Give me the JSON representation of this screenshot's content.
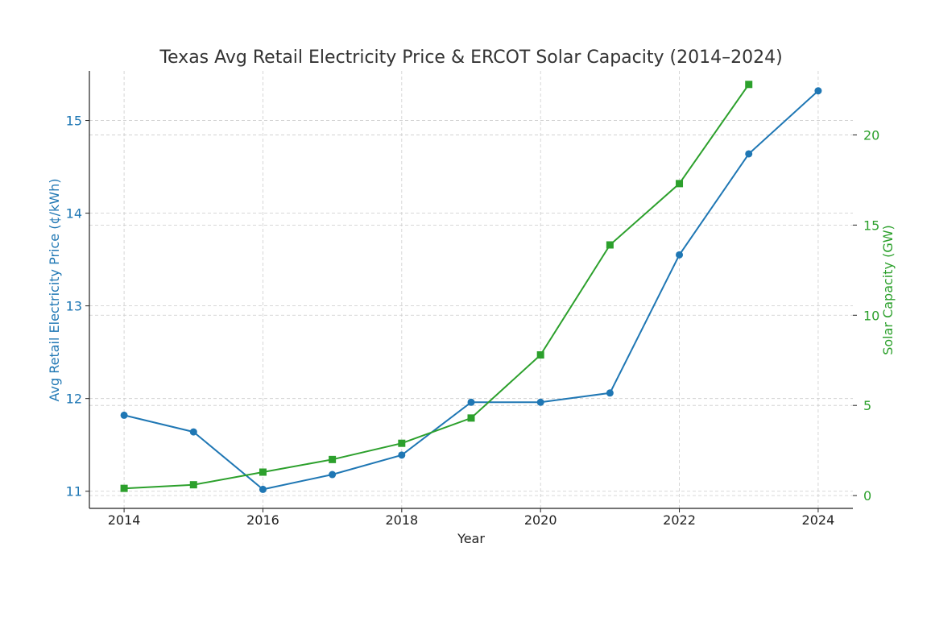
{
  "chart_data": {
    "type": "line",
    "title": "Texas Avg Retail Electricity Price & ERCOT Solar Capacity (2014–2024)",
    "xlabel": "Year",
    "x_ticks": [
      "2014",
      "2016",
      "2018",
      "2020",
      "2022",
      "2024"
    ],
    "x_range": [
      2013.5,
      2024.5
    ],
    "grid": true,
    "series": [
      {
        "name": "Avg Retail Electricity Price",
        "axis": "left",
        "color": "#1f77b4",
        "marker": "circle",
        "x": [
          2014,
          2015,
          2016,
          2017,
          2018,
          2019,
          2020,
          2021,
          2022,
          2023,
          2024
        ],
        "values": [
          11.82,
          11.64,
          11.02,
          11.18,
          11.39,
          11.96,
          11.96,
          12.06,
          13.55,
          14.64,
          15.32
        ]
      },
      {
        "name": "Solar Capacity",
        "axis": "right",
        "color": "#2ca02c",
        "marker": "square",
        "x": [
          2014,
          2015,
          2016,
          2017,
          2018,
          2019,
          2020,
          2021,
          2022,
          2023
        ],
        "values": [
          0.4,
          0.6,
          1.3,
          2.0,
          2.9,
          4.3,
          7.8,
          13.9,
          17.3,
          22.8
        ]
      }
    ],
    "y_left": {
      "label": "Avg Retail Electricity Price (¢/kWh)",
      "ticks": [
        "11",
        "12",
        "13",
        "14",
        "15"
      ],
      "range": [
        10.815,
        15.535
      ],
      "color": "#1f77b4"
    },
    "y_right": {
      "label": "Solar Capacity (GW)",
      "ticks": [
        "0",
        "5",
        "10",
        "15",
        "20"
      ],
      "range": [
        -0.71,
        23.55
      ],
      "color": "#2ca02c"
    }
  }
}
